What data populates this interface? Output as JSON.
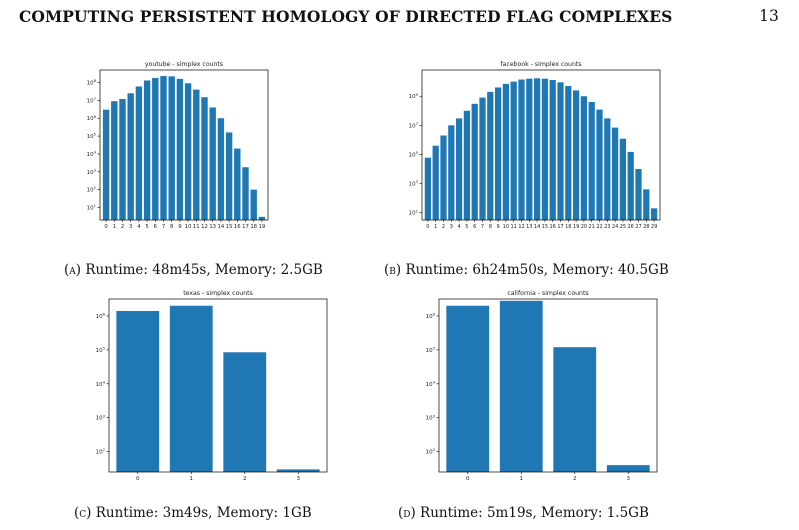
{
  "running_head": {
    "title": "COMPUTING PERSISTENT HOMOLOGY OF DIRECTED FLAG COMPLEXES",
    "page_number": "13"
  },
  "style": {
    "bar_color": "#1f77b4",
    "axis_color": "#000000"
  },
  "captions": [
    {
      "tag": "(a)",
      "text": " Runtime: 48m45s, Memory: 2.5GB"
    },
    {
      "tag": "(b)",
      "text": " Runtime: 6h24m50s, Memory: 40.5GB"
    },
    {
      "tag": "(c)",
      "text": " Runtime: 3m49s, Memory: 1GB"
    },
    {
      "tag": "(d)",
      "text": " Runtime: 5m19s, Memory: 1.5GB"
    }
  ],
  "chart_data": [
    {
      "type": "bar",
      "title": "youtube - simplex counts",
      "y_scale": "log",
      "categories": [
        "0",
        "1",
        "2",
        "3",
        "4",
        "5",
        "6",
        "7",
        "8",
        "9",
        "10",
        "11",
        "12",
        "13",
        "14",
        "15",
        "16",
        "17",
        "18",
        "19"
      ],
      "values": [
        3000000,
        9000000,
        12000000,
        25000000,
        60000000,
        130000000,
        180000000,
        230000000,
        220000000,
        160000000,
        90000000,
        40000000,
        15000000,
        4000000,
        1000000,
        160000,
        20000,
        1800,
        100,
        3
      ],
      "ytick_exponents": [
        1,
        2,
        3,
        4,
        5,
        6,
        7,
        8
      ],
      "ylim_exp": [
        0.3,
        8.7
      ]
    },
    {
      "type": "bar",
      "title": "facebook - simplex counts",
      "y_scale": "log",
      "categories": [
        "0",
        "1",
        "2",
        "3",
        "4",
        "5",
        "6",
        "7",
        "8",
        "9",
        "10",
        "11",
        "12",
        "13",
        "14",
        "15",
        "16",
        "17",
        "18",
        "19",
        "20",
        "21",
        "22",
        "23",
        "24",
        "25",
        "26",
        "27",
        "28",
        "29"
      ],
      "values": [
        60000,
        400000,
        2000000,
        10000000,
        30000000,
        100000000,
        300000000,
        800000000,
        2000000000,
        4000000000,
        7000000000,
        10000000000,
        14000000000,
        16000000000,
        17000000000,
        16000000000,
        13000000000,
        9000000000,
        5000000000,
        2500000000,
        1000000000,
        400000000,
        120000000,
        30000000,
        7000000,
        1200000,
        150000,
        10000,
        400,
        20
      ],
      "ytick_exponents": [
        1,
        3,
        5,
        7,
        9
      ],
      "ylim_exp": [
        0.5,
        10.8
      ]
    },
    {
      "type": "bar",
      "title": "texas - simplex counts",
      "y_scale": "log",
      "categories": [
        "0",
        "1",
        "2",
        "3"
      ],
      "values": [
        1400000,
        2000000,
        85000,
        30
      ],
      "ytick_exponents": [
        2,
        3,
        4,
        5,
        6
      ],
      "ylim_exp": [
        1.4,
        6.5
      ]
    },
    {
      "type": "bar",
      "title": "california - simplex counts",
      "y_scale": "log",
      "categories": [
        "0",
        "1",
        "2",
        "3"
      ],
      "values": [
        2000000,
        2800000,
        120000,
        40
      ],
      "ytick_exponents": [
        2,
        3,
        4,
        5,
        6
      ],
      "ylim_exp": [
        1.4,
        6.5
      ]
    }
  ]
}
